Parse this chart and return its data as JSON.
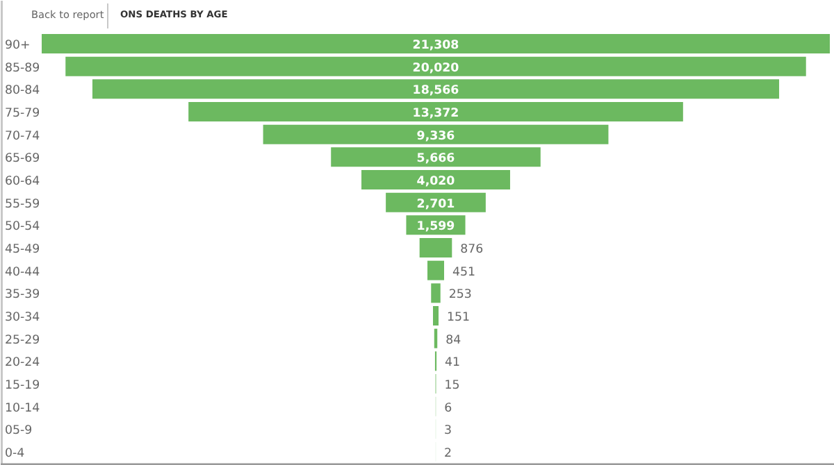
{
  "chart_data": {
    "type": "other",
    "title": "ONS DEATHS BY AGE",
    "annotations": [
      "Back to report"
    ],
    "categories": [
      "90+",
      "85-89",
      "80-84",
      "75-79",
      "70-74",
      "65-69",
      "60-64",
      "55-59",
      "50-54",
      "45-49",
      "40-44",
      "35-39",
      "30-34",
      "25-29",
      "20-24",
      "15-19",
      "10-14",
      "05-9",
      "0-4"
    ],
    "values": [
      21308,
      20020,
      18566,
      13372,
      9336,
      5666,
      4020,
      2701,
      1599,
      876,
      451,
      253,
      151,
      84,
      41,
      15,
      6,
      3,
      2
    ],
    "value_labels": [
      "21,308",
      "20,020",
      "18,566",
      "13,372",
      "9,336",
      "5,666",
      "4,020",
      "2,701",
      "1,599",
      "876",
      "451",
      "253",
      "151",
      "84",
      "41",
      "15",
      "6",
      "3",
      "2"
    ],
    "color": "#6cb960"
  }
}
